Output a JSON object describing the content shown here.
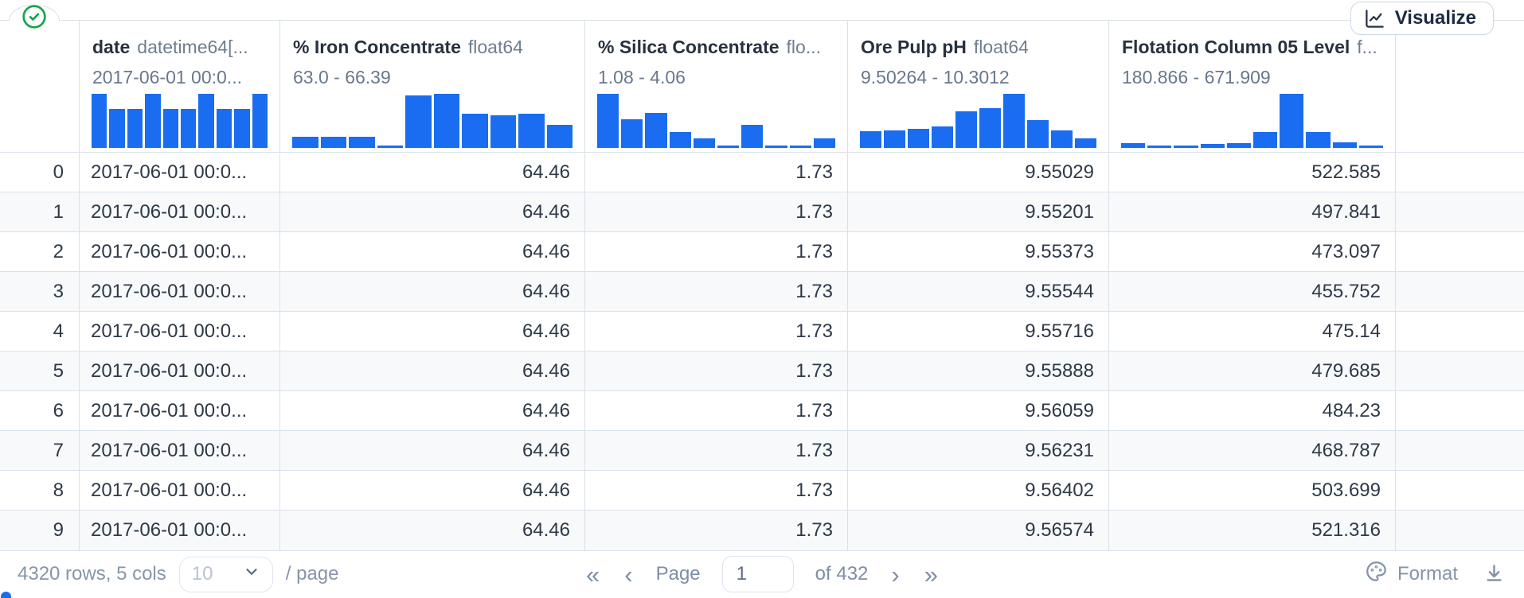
{
  "toolbar": {
    "visualize_label": "Visualize"
  },
  "table": {
    "columns": [
      {
        "name": "date",
        "type": "datetime64[...",
        "range": "2017-06-01 00:0...",
        "histogram": [
          1,
          0.72,
          0.72,
          1,
          0.72,
          0.72,
          1,
          0.72,
          0.72,
          1
        ]
      },
      {
        "name": "% Iron Concentrate",
        "type": "float64",
        "range": "63.0 - 66.39",
        "histogram": [
          0.2,
          0.2,
          0.2,
          0.05,
          0.97,
          1,
          0.63,
          0.6,
          0.63,
          0.42
        ]
      },
      {
        "name": "% Silica Concentrate",
        "type": "flo...",
        "range": "1.08 - 4.06",
        "histogram": [
          1,
          0.53,
          0.65,
          0.29,
          0.17,
          0.04,
          0.43,
          0.04,
          0.04,
          0.17
        ]
      },
      {
        "name": "Ore Pulp pH",
        "type": "float64",
        "range": "9.50264 - 10.3012",
        "histogram": [
          0.31,
          0.32,
          0.36,
          0.39,
          0.67,
          0.74,
          1,
          0.51,
          0.33,
          0.18
        ]
      },
      {
        "name": "Flotation Column 05 Level",
        "type": "f...",
        "range": "180.866 - 671.909",
        "histogram": [
          0.09,
          0.05,
          0.05,
          0.07,
          0.09,
          0.29,
          1,
          0.3,
          0.1,
          0.05
        ]
      }
    ],
    "rows": [
      {
        "index": "0",
        "date": "2017-06-01 00:0...",
        "iron": "64.46",
        "silica": "1.73",
        "ph": "9.55029",
        "flotation": "522.585"
      },
      {
        "index": "1",
        "date": "2017-06-01 00:0...",
        "iron": "64.46",
        "silica": "1.73",
        "ph": "9.55201",
        "flotation": "497.841"
      },
      {
        "index": "2",
        "date": "2017-06-01 00:0...",
        "iron": "64.46",
        "silica": "1.73",
        "ph": "9.55373",
        "flotation": "473.097"
      },
      {
        "index": "3",
        "date": "2017-06-01 00:0...",
        "iron": "64.46",
        "silica": "1.73",
        "ph": "9.55544",
        "flotation": "455.752"
      },
      {
        "index": "4",
        "date": "2017-06-01 00:0...",
        "iron": "64.46",
        "silica": "1.73",
        "ph": "9.55716",
        "flotation": "475.14"
      },
      {
        "index": "5",
        "date": "2017-06-01 00:0...",
        "iron": "64.46",
        "silica": "1.73",
        "ph": "9.55888",
        "flotation": "479.685"
      },
      {
        "index": "6",
        "date": "2017-06-01 00:0...",
        "iron": "64.46",
        "silica": "1.73",
        "ph": "9.56059",
        "flotation": "484.23"
      },
      {
        "index": "7",
        "date": "2017-06-01 00:0...",
        "iron": "64.46",
        "silica": "1.73",
        "ph": "9.56231",
        "flotation": "468.787"
      },
      {
        "index": "8",
        "date": "2017-06-01 00:0...",
        "iron": "64.46",
        "silica": "1.73",
        "ph": "9.56402",
        "flotation": "503.699"
      },
      {
        "index": "9",
        "date": "2017-06-01 00:0...",
        "iron": "64.46",
        "silica": "1.73",
        "ph": "9.56574",
        "flotation": "521.316"
      }
    ]
  },
  "footer": {
    "summary": "4320 rows, 5 cols",
    "page_size": "10",
    "per_page_label": "/ page",
    "page_label": "Page",
    "page_value": "1",
    "of_label": "of",
    "total_pages": "432",
    "first_page": "«",
    "prev_page": "‹",
    "next_page": "›",
    "last_page": "»",
    "format_label": "Format"
  },
  "colors": {
    "accent_blue": "#1a6df0",
    "check_green": "#17a34a"
  }
}
